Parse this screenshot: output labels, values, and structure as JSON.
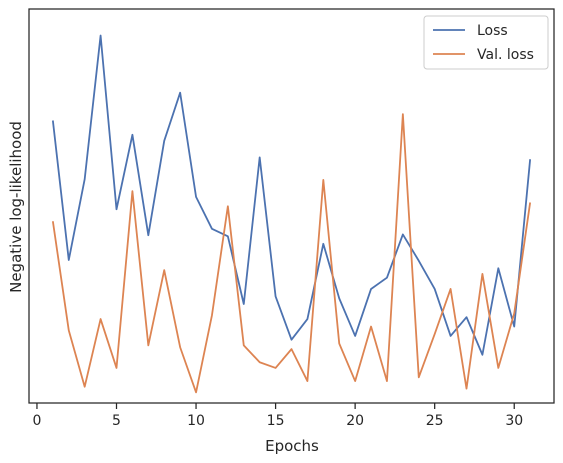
{
  "chart_data": {
    "type": "line",
    "title": "",
    "xlabel": "Epochs",
    "ylabel": "Negative log-likelihood",
    "xlim": [
      -0.5,
      32.5
    ],
    "ylim": [
      0,
      1
    ],
    "x_ticks": [
      0,
      5,
      10,
      15,
      20,
      25,
      30
    ],
    "y_ticks_shown": false,
    "grid": false,
    "legend_position": "top-right",
    "x": [
      1,
      2,
      3,
      4,
      5,
      6,
      7,
      8,
      9,
      10,
      11,
      12,
      13,
      14,
      15,
      16,
      17,
      18,
      19,
      20,
      21,
      22,
      23,
      24,
      25,
      26,
      27,
      28,
      29,
      30,
      31
    ],
    "series": [
      {
        "name": "Loss",
        "color": "#4c72b0",
        "values": [
          0.738,
          0.367,
          0.582,
          0.964,
          0.502,
          0.7,
          0.433,
          0.684,
          0.812,
          0.535,
          0.45,
          0.43,
          0.25,
          0.64,
          0.27,
          0.155,
          0.21,
          0.41,
          0.265,
          0.165,
          0.29,
          0.32,
          0.435,
          0.365,
          0.29,
          0.165,
          0.215,
          0.115,
          0.345,
          0.19,
          0.635
        ]
      },
      {
        "name": "Val. loss",
        "color": "#dd8452",
        "values": [
          0.47,
          0.18,
          0.03,
          0.21,
          0.08,
          0.55,
          0.14,
          0.34,
          0.135,
          0.015,
          0.22,
          0.51,
          0.14,
          0.095,
          0.08,
          0.13,
          0.045,
          0.58,
          0.145,
          0.045,
          0.19,
          0.045,
          0.755,
          0.055,
          0.17,
          0.29,
          0.025,
          0.33,
          0.08,
          0.225,
          0.52
        ]
      }
    ]
  }
}
